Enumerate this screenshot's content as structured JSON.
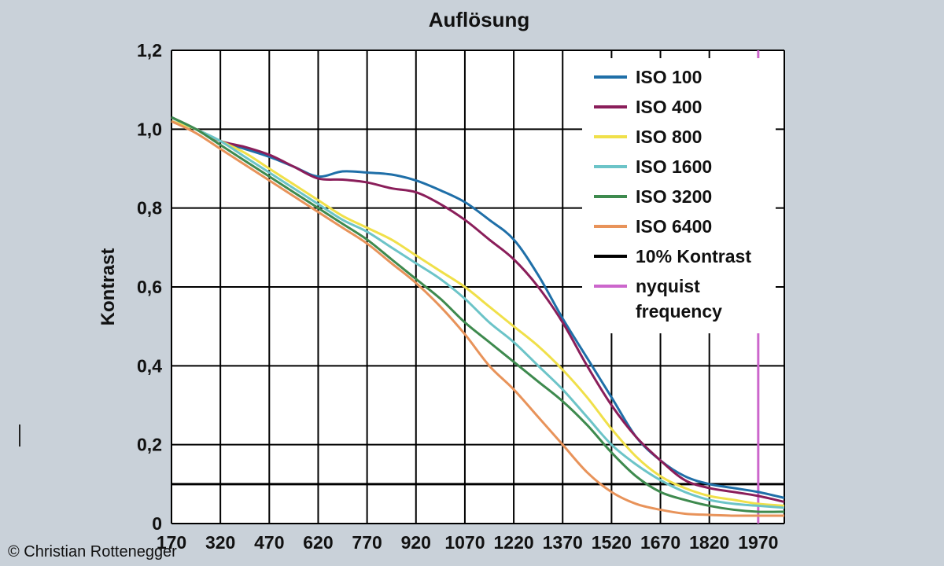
{
  "chart_data": {
    "type": "line",
    "title": "Auflösung",
    "xlabel": "",
    "ylabel": "Kontrast",
    "xlim": [
      170,
      2050
    ],
    "ylim": [
      0,
      1.2
    ],
    "x_ticks": [
      "170",
      "320",
      "470",
      "620",
      "770",
      "920",
      "1070",
      "1220",
      "1370",
      "1520",
      "1670",
      "1820",
      "1970"
    ],
    "y_ticks": [
      "0",
      "0,2",
      "0,4",
      "0,6",
      "0,8",
      "1,0",
      "1,2"
    ],
    "grid": true,
    "legend_position": "top-right",
    "x": [
      170,
      245,
      320,
      395,
      470,
      545,
      620,
      695,
      770,
      845,
      920,
      995,
      1070,
      1145,
      1220,
      1295,
      1370,
      1445,
      1520,
      1595,
      1670,
      1745,
      1820,
      1895,
      1970,
      2050
    ],
    "series": [
      {
        "name": "ISO 100",
        "color": "#1f6fa8",
        "values": [
          1.02,
          1.0,
          0.97,
          0.95,
          0.93,
          0.905,
          0.88,
          0.893,
          0.89,
          0.885,
          0.87,
          0.845,
          0.815,
          0.77,
          0.72,
          0.63,
          0.52,
          0.42,
          0.32,
          0.22,
          0.16,
          0.12,
          0.1,
          0.09,
          0.08,
          0.065
        ]
      },
      {
        "name": "ISO 400",
        "color": "#8a1e5a",
        "values": [
          1.03,
          1.0,
          0.97,
          0.955,
          0.935,
          0.905,
          0.875,
          0.872,
          0.865,
          0.85,
          0.84,
          0.81,
          0.77,
          0.72,
          0.67,
          0.6,
          0.51,
          0.4,
          0.3,
          0.22,
          0.16,
          0.11,
          0.09,
          0.08,
          0.07,
          0.055
        ]
      },
      {
        "name": "ISO 800",
        "color": "#f0e04a",
        "values": [
          1.02,
          1.0,
          0.97,
          0.94,
          0.9,
          0.86,
          0.82,
          0.78,
          0.75,
          0.72,
          0.68,
          0.64,
          0.6,
          0.55,
          0.5,
          0.45,
          0.39,
          0.32,
          0.24,
          0.17,
          0.12,
          0.09,
          0.07,
          0.06,
          0.05,
          0.045
        ]
      },
      {
        "name": "ISO 1600",
        "color": "#6cc4c8",
        "values": [
          1.03,
          1.0,
          0.97,
          0.93,
          0.89,
          0.85,
          0.81,
          0.77,
          0.74,
          0.7,
          0.66,
          0.62,
          0.57,
          0.51,
          0.46,
          0.4,
          0.34,
          0.27,
          0.2,
          0.15,
          0.11,
          0.08,
          0.06,
          0.05,
          0.045,
          0.04
        ]
      },
      {
        "name": "ISO 3200",
        "color": "#3e8a4e",
        "values": [
          1.03,
          1.0,
          0.96,
          0.92,
          0.88,
          0.84,
          0.8,
          0.76,
          0.72,
          0.67,
          0.62,
          0.57,
          0.51,
          0.46,
          0.41,
          0.36,
          0.31,
          0.25,
          0.18,
          0.12,
          0.08,
          0.06,
          0.045,
          0.035,
          0.03,
          0.03
        ]
      },
      {
        "name": "ISO 6400",
        "color": "#e8935a",
        "values": [
          1.02,
          0.99,
          0.95,
          0.91,
          0.87,
          0.83,
          0.79,
          0.75,
          0.71,
          0.66,
          0.61,
          0.55,
          0.48,
          0.4,
          0.34,
          0.27,
          0.2,
          0.13,
          0.08,
          0.05,
          0.035,
          0.025,
          0.022,
          0.02,
          0.02,
          0.02
        ]
      }
    ],
    "reference_lines": [
      {
        "name": "10% Kontrast",
        "color": "#000000",
        "orientation": "horizontal",
        "value": 0.1
      },
      {
        "name": "nyquist frequency",
        "color": "#cc66cc",
        "orientation": "vertical",
        "value": 1970
      }
    ],
    "legend": [
      {
        "label": "ISO 100",
        "color": "#1f6fa8"
      },
      {
        "label": "ISO 400",
        "color": "#8a1e5a"
      },
      {
        "label": "ISO 800",
        "color": "#f0e04a"
      },
      {
        "label": "ISO 1600",
        "color": "#6cc4c8"
      },
      {
        "label": "ISO 3200",
        "color": "#3e8a4e"
      },
      {
        "label": "ISO 6400",
        "color": "#e8935a"
      },
      {
        "label": "10% Kontrast",
        "color": "#000000"
      },
      {
        "label": [
          "nyquist",
          "frequency"
        ],
        "color": "#cc66cc"
      }
    ]
  },
  "credit": "© Christian Rottenegger",
  "colors": {
    "background": "#c9d1d9",
    "plot_background": "#ffffff",
    "grid": "#000000"
  }
}
